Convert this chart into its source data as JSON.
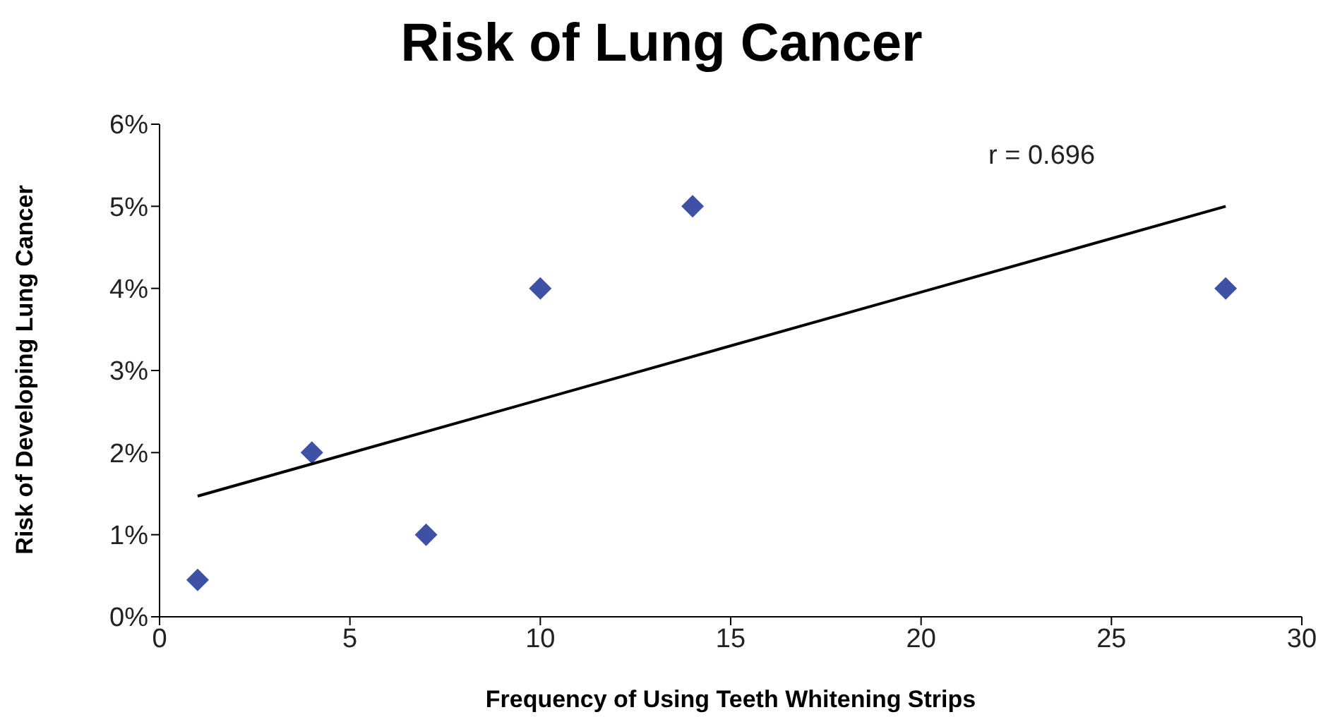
{
  "chart_data": {
    "type": "scatter",
    "title": "Risk of Lung Cancer",
    "xlabel": "Frequency of Using Teeth Whitening Strips",
    "ylabel": "Risk of Developing Lung Cancer",
    "annotations": [
      "r = 0.696"
    ],
    "xlim": [
      0,
      30
    ],
    "xticks": [
      0,
      5,
      10,
      15,
      20,
      25,
      30
    ],
    "ylim": [
      0,
      6
    ],
    "yticks": [
      {
        "value": 0,
        "label": "0%"
      },
      {
        "value": 1,
        "label": "1%"
      },
      {
        "value": 2,
        "label": "2%"
      },
      {
        "value": 3,
        "label": "3%"
      },
      {
        "value": 4,
        "label": "4%"
      },
      {
        "value": 5,
        "label": "5%"
      },
      {
        "value": 6,
        "label": "6%"
      }
    ],
    "grid": false,
    "legend": false,
    "marker": "diamond",
    "series": [
      {
        "type": "scatter",
        "color": "#3f51a5",
        "x": [
          1,
          4,
          7,
          10,
          14,
          28
        ],
        "values": [
          0.45,
          2,
          1,
          4,
          5,
          4
        ]
      },
      {
        "type": "line",
        "color": "#000000",
        "x": [
          1,
          28
        ],
        "values": [
          1.47,
          5.0
        ],
        "marker": "none"
      }
    ]
  }
}
